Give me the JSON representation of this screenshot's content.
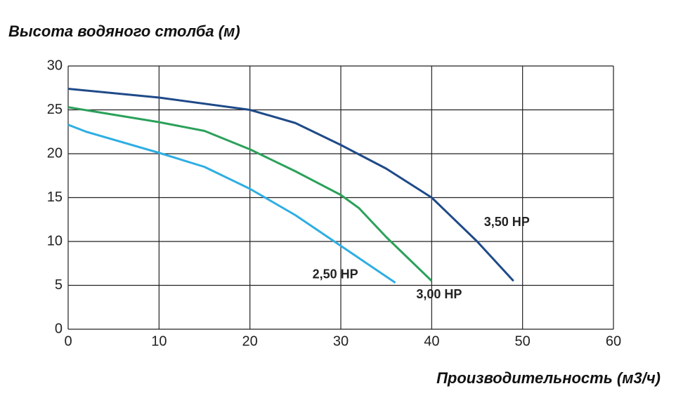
{
  "chart_data": {
    "type": "line",
    "y_label": "Высота водяного столба (м)",
    "x_label": "Производительность (м3/ч)",
    "xlim": [
      0,
      60
    ],
    "xticks": [
      0,
      10,
      20,
      30,
      40,
      50,
      60
    ],
    "ylim": [
      0,
      30
    ],
    "yticks": [
      0,
      5,
      10,
      15,
      20,
      25,
      30
    ],
    "grid": true,
    "series": [
      {
        "name": "3,50 HP",
        "color": "#1f4a88",
        "x": [
          0,
          10,
          20,
          25,
          30,
          35,
          40,
          45,
          49
        ],
        "values": [
          27.4,
          26.4,
          25,
          23.5,
          21,
          18.3,
          15,
          10,
          5.5
        ]
      },
      {
        "name": "3,00 HP",
        "color": "#2ba15a",
        "x": [
          0,
          10,
          15,
          20,
          25,
          30,
          32,
          35,
          40
        ],
        "values": [
          25.3,
          23.6,
          22.6,
          20.5,
          18,
          15.3,
          13.8,
          10.5,
          5.5
        ]
      },
      {
        "name": "2,50 HP",
        "color": "#2eaee3",
        "x": [
          0,
          2,
          10,
          15,
          20,
          25,
          30,
          36
        ],
        "values": [
          23.3,
          22.5,
          20.1,
          18.5,
          16,
          13,
          9.5,
          5.3
        ]
      }
    ]
  }
}
